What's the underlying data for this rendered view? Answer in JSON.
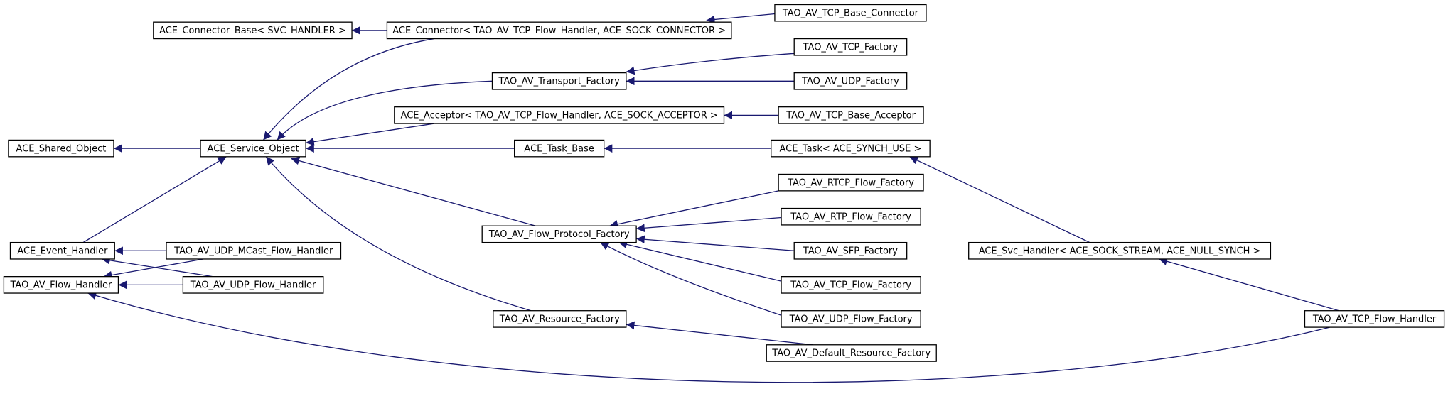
{
  "nodes": [
    {
      "label": "ACE_Connector_Base< SVC_HANDLER >"
    },
    {
      "label": "ACE_Connector< TAO_AV_TCP_Flow_Handler, ACE_SOCK_CONNECTOR >"
    },
    {
      "label": "TAO_AV_TCP_Base_Connector"
    },
    {
      "label": "TAO_AV_TCP_Factory"
    },
    {
      "label": "TAO_AV_Transport_Factory"
    },
    {
      "label": "TAO_AV_UDP_Factory"
    },
    {
      "label": "ACE_Acceptor< TAO_AV_TCP_Flow_Handler, ACE_SOCK_ACCEPTOR >"
    },
    {
      "label": "TAO_AV_TCP_Base_Acceptor"
    },
    {
      "label": "ACE_Shared_Object"
    },
    {
      "label": "ACE_Service_Object"
    },
    {
      "label": "ACE_Task_Base"
    },
    {
      "label": "ACE_Task< ACE_SYNCH_USE >"
    },
    {
      "label": "TAO_AV_RTCP_Flow_Factory"
    },
    {
      "label": "TAO_AV_RTP_Flow_Factory"
    },
    {
      "label": "TAO_AV_Flow_Protocol_Factory"
    },
    {
      "label": "ACE_Event_Handler"
    },
    {
      "label": "TAO_AV_UDP_MCast_Flow_Handler"
    },
    {
      "label": "TAO_AV_SFP_Factory"
    },
    {
      "label": "ACE_Svc_Handler< ACE_SOCK_STREAM, ACE_NULL_SYNCH >"
    },
    {
      "label": "TAO_AV_Flow_Handler"
    },
    {
      "label": "TAO_AV_UDP_Flow_Handler"
    },
    {
      "label": "TAO_AV_TCP_Flow_Factory"
    },
    {
      "label": "TAO_AV_Resource_Factory"
    },
    {
      "label": "TAO_AV_UDP_Flow_Factory"
    },
    {
      "label": "TAO_AV_TCP_Flow_Handler"
    },
    {
      "label": "TAO_AV_Default_Resource_Factory"
    }
  ]
}
